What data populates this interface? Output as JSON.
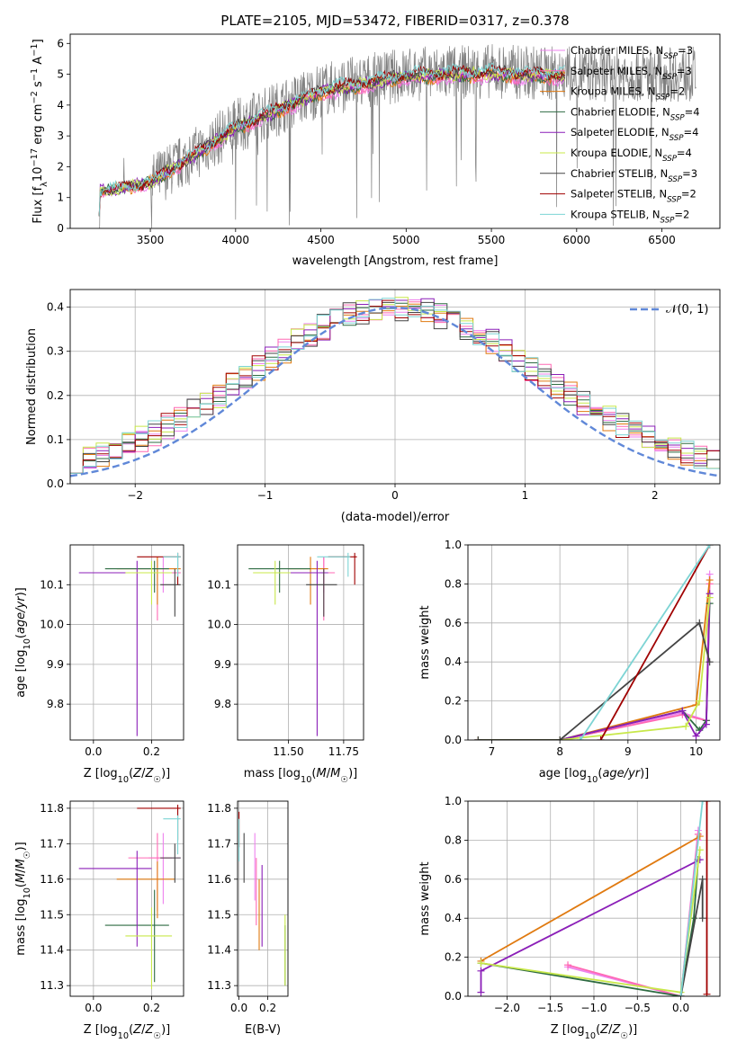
{
  "colors": {
    "Chabrier MILES": "#ee82ee",
    "Salpeter MILES": "#ff69b4",
    "Kroupa MILES": "#e07a10",
    "Chabrier ELODIE": "#2e6b42",
    "Salpeter ELODIE": "#8b1fb8",
    "Kroupa ELODIE": "#c8e84a",
    "Chabrier STELIB": "#444444",
    "Salpeter STELIB": "#a00000",
    "Kroupa STELIB": "#7dd4d4",
    "data": "#808080",
    "normal": "#6088d8",
    "grid": "#b0b0b0"
  },
  "chart_data": [
    {
      "id": "spectrum",
      "type": "line",
      "title": "PLATE=2105, MJD=53472, FIBERID=0317, z=0.378",
      "xlabel": "wavelength [Angstrom, rest frame]",
      "ylabel": "Flux [fλ10⁻¹⁷ erg cm⁻² s⁻¹ A⁻¹]",
      "xlim": [
        3030,
        6840
      ],
      "ylim": [
        0,
        6.3
      ],
      "xticks": [
        3500,
        4000,
        4500,
        5000,
        5500,
        6000,
        6500
      ],
      "yticks": [
        0,
        1,
        2,
        3,
        4,
        5,
        6
      ],
      "data_trace": {
        "x_start": 3200,
        "x_end": 6700,
        "envelope": [
          [
            3200,
            1.2
          ],
          [
            3500,
            1.5
          ],
          [
            3700,
            2.2
          ],
          [
            4000,
            3.3
          ],
          [
            4500,
            4.5
          ],
          [
            5000,
            5.0
          ],
          [
            5500,
            5.1
          ],
          [
            6000,
            5.0
          ],
          [
            6700,
            5.0
          ]
        ]
      },
      "legend": [
        {
          "model": "Chabrier MILES",
          "nssp": "3"
        },
        {
          "model": "Salpeter MILES",
          "nssp": "3"
        },
        {
          "model": "Kroupa MILES",
          "nssp": "2"
        },
        {
          "model": "Chabrier ELODIE",
          "nssp": "4"
        },
        {
          "model": "Salpeter ELODIE",
          "nssp": "4"
        },
        {
          "model": "Kroupa ELODIE",
          "nssp": "4"
        },
        {
          "model": "Chabrier STELIB",
          "nssp": "3"
        },
        {
          "model": "Salpeter STELIB",
          "nssp": "2"
        },
        {
          "model": "Kroupa STELIB",
          "nssp": "2"
        }
      ]
    },
    {
      "id": "residuals",
      "type": "histogram",
      "xlabel": "(data-model)/error",
      "ylabel": "Normed distribution",
      "xlim": [
        -2.5,
        2.5
      ],
      "ylim": [
        0,
        0.44
      ],
      "xticks": [
        -2,
        -1,
        0,
        1,
        2
      ],
      "yticks": [
        0.0,
        0.1,
        0.2,
        0.3,
        0.4
      ],
      "bin_width": 0.1,
      "reference_curve": {
        "label": "𝒩(0,1)",
        "mean": 0,
        "sigma": 1
      }
    },
    {
      "id": "age_vs_Z",
      "type": "errorbar",
      "xlabel": "Z [log10(Z/Z☉)]",
      "ylabel": "age [log10(age/yr)]",
      "xlim": [
        -0.08,
        0.31
      ],
      "ylim": [
        9.71,
        10.2
      ],
      "xticks": [
        0.0,
        0.2
      ],
      "yticks": [
        9.8,
        9.9,
        10.0,
        10.1
      ],
      "points": [
        {
          "model": "Chabrier MILES",
          "x": 0.24,
          "xerr": [
            0.1,
            0.06
          ],
          "y": 10.13,
          "yerr": [
            0.05,
            0.04
          ]
        },
        {
          "model": "Salpeter MILES",
          "x": 0.22,
          "xerr": [
            0.1,
            0.08
          ],
          "y": 10.13,
          "yerr": [
            0.12,
            0.04
          ]
        },
        {
          "model": "Kroupa MILES",
          "x": 0.22,
          "xerr": [
            0.14,
            0.08
          ],
          "y": 10.14,
          "yerr": [
            0.09,
            0.03
          ]
        },
        {
          "model": "Chabrier ELODIE",
          "x": 0.21,
          "xerr": [
            0.17,
            0.05
          ],
          "y": 10.14,
          "yerr": [
            0.06,
            0.02
          ]
        },
        {
          "model": "Salpeter ELODIE",
          "x": 0.15,
          "xerr": [
            0.2,
            0.12
          ],
          "y": 10.13,
          "yerr": [
            0.41,
            0.03
          ]
        },
        {
          "model": "Kroupa ELODIE",
          "x": 0.2,
          "xerr": [
            0.09,
            0.07
          ],
          "y": 10.13,
          "yerr": [
            0.08,
            0.03
          ]
        },
        {
          "model": "Chabrier STELIB",
          "x": 0.28,
          "xerr": [
            0.05,
            0.02
          ],
          "y": 10.1,
          "yerr": [
            0.08,
            0.04
          ]
        },
        {
          "model": "Salpeter STELIB",
          "x": 0.29,
          "xerr": [
            0.14,
            0.01
          ],
          "y": 10.17,
          "yerr": [
            0.07,
            0.01
          ]
        },
        {
          "model": "Kroupa STELIB",
          "x": 0.29,
          "xerr": [
            0.05,
            0.01
          ],
          "y": 10.17,
          "yerr": [
            0.05,
            0.01
          ]
        }
      ]
    },
    {
      "id": "age_vs_mass",
      "type": "errorbar",
      "xlabel": "mass [log10(M/M☉)]",
      "ylabel": "",
      "xlim": [
        11.27,
        11.84
      ],
      "ylim": [
        9.71,
        10.2
      ],
      "xticks": [
        11.5,
        11.75
      ],
      "yticks": [
        9.8,
        9.9,
        10.0,
        10.1
      ],
      "points": [
        {
          "model": "Chabrier MILES",
          "x": 11.66,
          "xerr": [
            0.2,
            0.05
          ],
          "y": 10.13,
          "yerr": [
            0.05,
            0.04
          ]
        },
        {
          "model": "Salpeter MILES",
          "x": 11.66,
          "xerr": [
            0.1,
            0.05
          ],
          "y": 10.13,
          "yerr": [
            0.12,
            0.04
          ]
        },
        {
          "model": "Kroupa MILES",
          "x": 11.6,
          "xerr": [
            0.1,
            0.08
          ],
          "y": 10.14,
          "yerr": [
            0.09,
            0.03
          ]
        },
        {
          "model": "Chabrier ELODIE",
          "x": 11.46,
          "xerr": [
            0.14,
            0.14
          ],
          "y": 10.14,
          "yerr": [
            0.06,
            0.02
          ]
        },
        {
          "model": "Salpeter ELODIE",
          "x": 11.63,
          "xerr": [
            0.2,
            0.05
          ],
          "y": 10.13,
          "yerr": [
            0.41,
            0.03
          ]
        },
        {
          "model": "Kroupa ELODIE",
          "x": 11.44,
          "xerr": [
            0.1,
            0.07
          ],
          "y": 10.13,
          "yerr": [
            0.08,
            0.03
          ]
        },
        {
          "model": "Chabrier STELIB",
          "x": 11.66,
          "xerr": [
            0.08,
            0.06
          ],
          "y": 10.1,
          "yerr": [
            0.08,
            0.04
          ]
        },
        {
          "model": "Salpeter STELIB",
          "x": 11.8,
          "xerr": [
            0.12,
            0.01
          ],
          "y": 10.17,
          "yerr": [
            0.07,
            0.01
          ]
        },
        {
          "model": "Kroupa STELIB",
          "x": 11.77,
          "xerr": [
            0.14,
            0.01
          ],
          "y": 10.17,
          "yerr": [
            0.05,
            0.01
          ]
        }
      ]
    },
    {
      "id": "weight_vs_age",
      "type": "line",
      "xlabel": "age [log10(age/yr)]",
      "ylabel": "mass weight",
      "xlim": [
        6.65,
        10.35
      ],
      "ylim": [
        0,
        1.0
      ],
      "xticks": [
        7,
        8,
        9,
        10
      ],
      "yticks": [
        0.0,
        0.2,
        0.4,
        0.6,
        0.8,
        1.0
      ],
      "series": [
        {
          "model": "Chabrier MILES",
          "x": [
            6.8,
            8.0,
            9.8,
            10.15,
            10.2
          ],
          "y": [
            0.0,
            0.0,
            0.14,
            0.1,
            0.85
          ]
        },
        {
          "model": "Salpeter MILES",
          "x": [
            6.8,
            8.0,
            9.8,
            10.15,
            10.2
          ],
          "y": [
            0.0,
            0.0,
            0.13,
            0.1,
            0.8
          ]
        },
        {
          "model": "Kroupa MILES",
          "x": [
            8.0,
            10.0,
            10.2
          ],
          "y": [
            0.0,
            0.18,
            0.82
          ]
        },
        {
          "model": "Chabrier ELODIE",
          "x": [
            6.8,
            8.0,
            9.8,
            10.05,
            10.15,
            10.2
          ],
          "y": [
            0.0,
            0.0,
            0.15,
            0.05,
            0.1,
            0.7
          ]
        },
        {
          "model": "Salpeter ELODIE",
          "x": [
            6.8,
            8.0,
            9.8,
            10.0,
            10.15,
            10.2
          ],
          "y": [
            0.0,
            0.0,
            0.15,
            0.02,
            0.08,
            0.75
          ]
        },
        {
          "model": "Kroupa ELODIE",
          "x": [
            6.8,
            8.0,
            9.85,
            10.05,
            10.2
          ],
          "y": [
            0.0,
            0.0,
            0.07,
            0.2,
            0.73
          ]
        },
        {
          "model": "Chabrier STELIB",
          "x": [
            6.8,
            8.0,
            10.05,
            10.2
          ],
          "y": [
            0.0,
            0.0,
            0.6,
            0.4
          ]
        },
        {
          "model": "Salpeter STELIB",
          "x": [
            8.6,
            10.2
          ],
          "y": [
            0.0,
            1.0
          ]
        },
        {
          "model": "Kroupa STELIB",
          "x": [
            8.3,
            10.2
          ],
          "y": [
            0.0,
            1.0
          ]
        }
      ]
    },
    {
      "id": "mass_vs_Z",
      "type": "errorbar",
      "xlabel": "Z [log10(Z/Z☉)]",
      "ylabel": "mass [log10(M/M☉)]",
      "xlim": [
        -0.08,
        0.31
      ],
      "ylim": [
        11.27,
        11.82
      ],
      "xticks": [
        0.0,
        0.2
      ],
      "yticks": [
        11.3,
        11.4,
        11.5,
        11.6,
        11.7,
        11.8
      ],
      "points": [
        {
          "model": "Chabrier MILES",
          "x": 0.24,
          "xerr": [
            0.05,
            0.06
          ],
          "y": 11.66,
          "yerr": [
            0.13,
            0.07
          ]
        },
        {
          "model": "Salpeter MILES",
          "x": 0.22,
          "xerr": [
            0.1,
            0.05
          ],
          "y": 11.66,
          "yerr": [
            0.15,
            0.07
          ]
        },
        {
          "model": "Kroupa MILES",
          "x": 0.22,
          "xerr": [
            0.14,
            0.06
          ],
          "y": 11.6,
          "yerr": [
            0.11,
            0.05
          ]
        },
        {
          "model": "Chabrier ELODIE",
          "x": 0.21,
          "xerr": [
            0.17,
            0.05
          ],
          "y": 11.47,
          "yerr": [
            0.16,
            0.1
          ]
        },
        {
          "model": "Salpeter ELODIE",
          "x": 0.15,
          "xerr": [
            0.2,
            0.05
          ],
          "y": 11.63,
          "yerr": [
            0.22,
            0.05
          ]
        },
        {
          "model": "Kroupa ELODIE",
          "x": 0.2,
          "xerr": [
            0.09,
            0.07
          ],
          "y": 11.44,
          "yerr": [
            0.15,
            0.08
          ]
        },
        {
          "model": "Chabrier STELIB",
          "x": 0.28,
          "xerr": [
            0.05,
            0.02
          ],
          "y": 11.66,
          "yerr": [
            0.07,
            0.04
          ]
        },
        {
          "model": "Salpeter STELIB",
          "x": 0.29,
          "xerr": [
            0.14,
            0.01
          ],
          "y": 11.8,
          "yerr": [
            0.09,
            0.01
          ]
        },
        {
          "model": "Kroupa STELIB",
          "x": 0.29,
          "xerr": [
            0.05,
            0.01
          ],
          "y": 11.77,
          "yerr": [
            0.1,
            0.01
          ]
        }
      ]
    },
    {
      "id": "mass_vs_EBV",
      "type": "errorbar",
      "xlabel": "E(B-V)",
      "ylabel": "",
      "xlim": [
        -0.01,
        0.34
      ],
      "ylim": [
        11.27,
        11.82
      ],
      "xticks": [
        0.0,
        0.2
      ],
      "yticks": [
        11.3,
        11.4,
        11.5,
        11.6,
        11.7,
        11.8
      ],
      "points": [
        {
          "model": "Chabrier MILES",
          "x": 0.11,
          "yerr": [
            0.12,
            0.07
          ],
          "y": 11.66
        },
        {
          "model": "Salpeter MILES",
          "x": 0.12,
          "yerr": [
            0.13,
            0.06
          ],
          "y": 11.6
        },
        {
          "model": "Kroupa MILES",
          "x": 0.14,
          "yerr": [
            0.15,
            0.05
          ],
          "y": 11.55
        },
        {
          "model": "Chabrier ELODIE",
          "x": 0.32,
          "yerr": [
            0.12,
            0.05
          ],
          "y": 11.42
        },
        {
          "model": "Salpeter ELODIE",
          "x": 0.16,
          "yerr": [
            0.15,
            0.08
          ],
          "y": 11.56
        },
        {
          "model": "Kroupa ELODIE",
          "x": 0.32,
          "yerr": [
            0.1,
            0.1
          ],
          "y": 11.4
        },
        {
          "model": "Chabrier STELIB",
          "x": 0.035,
          "yerr": [
            0.07,
            0.07
          ],
          "y": 11.66
        },
        {
          "model": "Salpeter STELIB",
          "x": 0.0,
          "yerr": [
            0.08,
            0.02
          ],
          "y": 11.77
        },
        {
          "model": "Kroupa STELIB",
          "x": 0.0,
          "yerr": [
            0.08,
            0.04
          ],
          "y": 11.73
        }
      ]
    },
    {
      "id": "weight_vs_Z",
      "type": "line",
      "xlabel": "Z [log10(Z/Z☉)]",
      "ylabel": "mass weight",
      "xlim": [
        -2.45,
        0.45
      ],
      "ylim": [
        0,
        1.0
      ],
      "xticks": [
        -2.0,
        -1.5,
        -1.0,
        -0.5,
        0.0
      ],
      "yticks": [
        0.0,
        0.2,
        0.4,
        0.6,
        0.8,
        1.0
      ],
      "series": [
        {
          "model": "Chabrier MILES",
          "x": [
            -1.3,
            0.0,
            0.2,
            0.2
          ],
          "y": [
            0.15,
            0.0,
            0.85,
            0.8
          ]
        },
        {
          "model": "Salpeter MILES",
          "x": [
            -1.3,
            0.0,
            0.2
          ],
          "y": [
            0.16,
            0.0,
            0.83
          ]
        },
        {
          "model": "Kroupa MILES",
          "x": [
            -2.3,
            0.22
          ],
          "y": [
            0.18,
            0.82
          ]
        },
        {
          "model": "Chabrier ELODIE",
          "x": [
            -2.3,
            0.0,
            0.15,
            0.2
          ],
          "y": [
            0.17,
            0.0,
            0.4,
            0.7
          ]
        },
        {
          "model": "Salpeter ELODIE",
          "x": [
            -2.3,
            -2.3,
            0.22
          ],
          "y": [
            0.02,
            0.13,
            0.7
          ]
        },
        {
          "model": "Kroupa ELODIE",
          "x": [
            -2.3,
            0.0,
            0.22
          ],
          "y": [
            0.17,
            0.02,
            0.75
          ]
        },
        {
          "model": "Chabrier STELIB",
          "x": [
            0.0,
            0.25,
            0.25
          ],
          "y": [
            0.0,
            0.6,
            0.4
          ]
        },
        {
          "model": "Salpeter STELIB",
          "x": [
            0.3,
            0.3
          ],
          "y": [
            0.01,
            1.0
          ]
        },
        {
          "model": "Kroupa STELIB",
          "x": [
            0.0,
            0.25
          ],
          "y": [
            0.0,
            1.0
          ]
        }
      ]
    }
  ]
}
